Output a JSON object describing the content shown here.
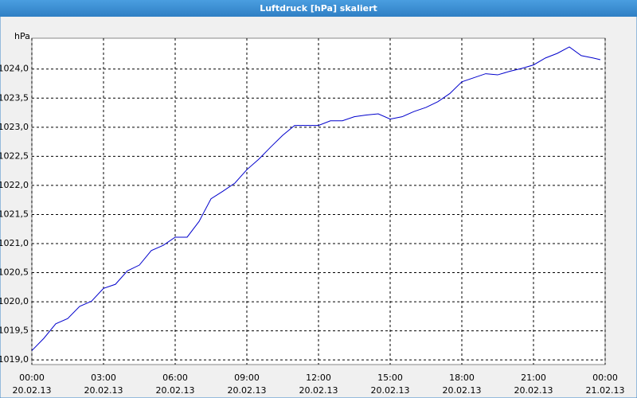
{
  "chart_data": {
    "type": "line",
    "title": "Luftdruck [hPa] skaliert",
    "y_label": "hPa",
    "x": [
      0,
      0.5,
      1,
      1.5,
      2,
      2.5,
      3,
      3.5,
      4,
      4.5,
      5,
      5.5,
      6,
      6.5,
      7,
      7.5,
      8,
      8.5,
      9,
      9.5,
      10,
      10.5,
      11,
      11.5,
      12,
      12.5,
      13,
      13.5,
      14,
      14.5,
      15,
      15.5,
      16,
      16.5,
      17,
      17.5,
      18,
      18.5,
      19,
      19.5,
      20,
      20.5,
      21,
      21.5,
      22,
      22.5,
      23,
      23.5,
      23.8
    ],
    "series": [
      {
        "name": "Luftdruck",
        "color": "#0000cc",
        "values": [
          1019.16,
          1019.37,
          1019.62,
          1019.71,
          1019.92,
          1020.01,
          1020.23,
          1020.3,
          1020.53,
          1020.63,
          1020.88,
          1020.97,
          1021.11,
          1021.11,
          1021.38,
          1021.77,
          1021.9,
          1022.04,
          1022.27,
          1022.45,
          1022.66,
          1022.86,
          1023.03,
          1023.03,
          1023.03,
          1023.11,
          1023.11,
          1023.18,
          1023.21,
          1023.23,
          1023.14,
          1023.18,
          1023.27,
          1023.34,
          1023.44,
          1023.58,
          1023.78,
          1023.85,
          1023.92,
          1023.9,
          1023.96,
          1024.01,
          1024.07,
          1024.19,
          1024.27,
          1024.38,
          1024.23,
          1024.19,
          1024.16
        ]
      }
    ],
    "xlim": [
      0,
      24
    ],
    "xticks": [
      {
        "value": 0,
        "label": "00:00",
        "date": "20.02.13"
      },
      {
        "value": 3,
        "label": "03:00",
        "date": "20.02.13"
      },
      {
        "value": 6,
        "label": "06:00",
        "date": "20.02.13"
      },
      {
        "value": 9,
        "label": "09:00",
        "date": "20.02.13"
      },
      {
        "value": 12,
        "label": "12:00",
        "date": "20.02.13"
      },
      {
        "value": 15,
        "label": "15:00",
        "date": "20.02.13"
      },
      {
        "value": 18,
        "label": "18:00",
        "date": "20.02.13"
      },
      {
        "value": 21,
        "label": "21:00",
        "date": "20.02.13"
      },
      {
        "value": 24,
        "label": "00:00",
        "date": "21.02.13"
      }
    ],
    "ylim": [
      1018.92,
      1024.53
    ],
    "yticks": [
      {
        "value": 1019,
        "label": "1019,0"
      },
      {
        "value": 1019.5,
        "label": "1019,5"
      },
      {
        "value": 1020,
        "label": "1020,0"
      },
      {
        "value": 1020.5,
        "label": "1020,5"
      },
      {
        "value": 1021,
        "label": "1021,0"
      },
      {
        "value": 1021.5,
        "label": "1021,5"
      },
      {
        "value": 1022,
        "label": "1022,0"
      },
      {
        "value": 1022.5,
        "label": "1022,5"
      },
      {
        "value": 1023,
        "label": "1023,0"
      },
      {
        "value": 1023.5,
        "label": "1023,5"
      },
      {
        "value": 1024,
        "label": "1024,0"
      }
    ],
    "grid": true
  }
}
